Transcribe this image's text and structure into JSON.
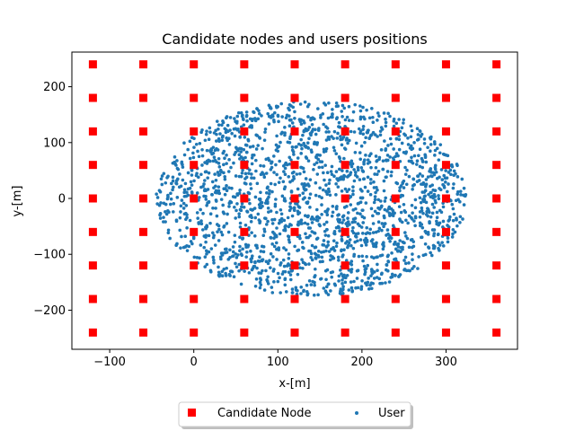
{
  "chart_data": {
    "type": "scatter",
    "title": "Candidate nodes and users positions",
    "xlabel": "x-[m]",
    "ylabel": "y-[m]",
    "xlim": [
      -145,
      385
    ],
    "ylim": [
      -270,
      262
    ],
    "xticks": [
      -100,
      0,
      100,
      200,
      300
    ],
    "yticks": [
      -200,
      -100,
      0,
      100,
      200
    ],
    "xtick_labels": [
      "−100",
      "0",
      "100",
      "200",
      "300"
    ],
    "ytick_labels": [
      "−200",
      "−100",
      "0",
      "100",
      "200"
    ],
    "grid": false,
    "legend_position": "bottom-center, outside plot",
    "series": [
      {
        "name": "Candidate Node",
        "marker": "square",
        "color": "#ff0000",
        "x_values": [
          -120,
          -60,
          0,
          60,
          120,
          180,
          240,
          300,
          360
        ],
        "y_values": [
          -240,
          -180,
          -120,
          -60,
          0,
          60,
          120,
          180,
          240
        ],
        "layout": "grid"
      },
      {
        "name": "User",
        "marker": "circle",
        "color": "#1f77b4",
        "distribution": "uniform-ellipse",
        "center": [
          140,
          0
        ],
        "semi_axes": [
          185,
          175
        ],
        "count": 2000
      }
    ]
  }
}
